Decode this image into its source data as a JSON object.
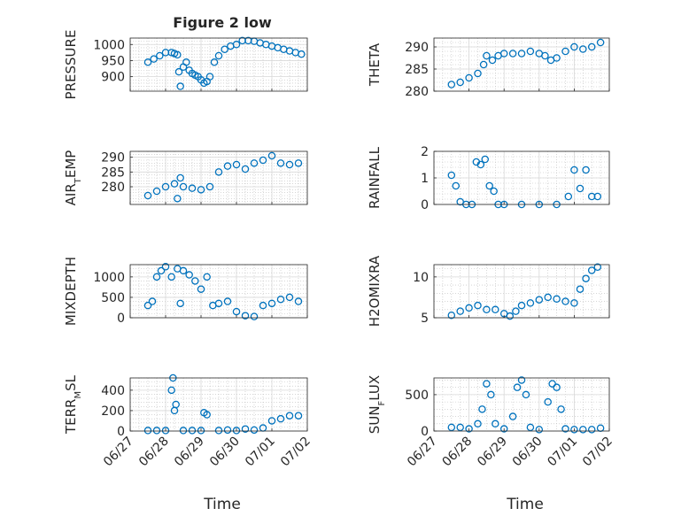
{
  "figure": {
    "title": "Figure 2 low",
    "xlabel": "Time",
    "date_ticks": [
      "06/27",
      "06/28",
      "06/29",
      "06/30",
      "07/01",
      "07/02"
    ]
  },
  "colors": {
    "marker": "#0072BD",
    "axis": "#262626",
    "grid": "#bdbdbd",
    "box": "#ffffff"
  },
  "chart_data": [
    {
      "type": "scatter",
      "name": "pressure",
      "ylabel": "PRESSURE",
      "title": "Figure 2 low",
      "xlim": [
        "06/27",
        "07/02"
      ],
      "ylim": [
        855,
        1020
      ],
      "yticks": [
        900,
        950,
        1000
      ],
      "grid": true,
      "x": [
        "06/27 12:00",
        "06/27 16:00",
        "06/27 20:00",
        "06/28 00:00",
        "06/28 04:00",
        "06/28 06:00",
        "06/28 08:00",
        "06/28 09:00",
        "06/28 10:00",
        "06/28 12:00",
        "06/28 14:00",
        "06/28 16:00",
        "06/28 18:00",
        "06/28 20:00",
        "06/28 22:00",
        "06/29 00:00",
        "06/29 02:00",
        "06/29 04:00",
        "06/29 06:00",
        "06/29 09:00",
        "06/29 12:00",
        "06/29 16:00",
        "06/29 20:00",
        "06/30 00:00",
        "06/30 04:00",
        "06/30 08:00",
        "06/30 12:00",
        "06/30 16:00",
        "06/30 20:00",
        "07/01 00:00",
        "07/01 04:00",
        "07/01 08:00",
        "07/01 12:00",
        "07/01 16:00",
        "07/01 20:00"
      ],
      "y": [
        945,
        955,
        965,
        975,
        975,
        972,
        968,
        915,
        870,
        930,
        945,
        920,
        910,
        905,
        900,
        890,
        880,
        885,
        900,
        945,
        965,
        985,
        995,
        1000,
        1012,
        1012,
        1010,
        1005,
        1000,
        995,
        990,
        985,
        980,
        975,
        970
      ]
    },
    {
      "type": "scatter",
      "name": "theta",
      "ylabel": "THETA",
      "xlim": [
        "06/27",
        "07/02"
      ],
      "ylim": [
        280,
        292
      ],
      "yticks": [
        280,
        285,
        290
      ],
      "grid": true,
      "x": [
        "06/27 12:00",
        "06/27 18:00",
        "06/28 00:00",
        "06/28 06:00",
        "06/28 10:00",
        "06/28 12:00",
        "06/28 16:00",
        "06/28 20:00",
        "06/29 00:00",
        "06/29 06:00",
        "06/29 12:00",
        "06/29 18:00",
        "06/30 00:00",
        "06/30 04:00",
        "06/30 08:00",
        "06/30 12:00",
        "06/30 18:00",
        "07/01 00:00",
        "07/01 06:00",
        "07/01 12:00",
        "07/01 18:00"
      ],
      "y": [
        281.5,
        282,
        283,
        284,
        286,
        288,
        287,
        288,
        288.5,
        288.5,
        288.5,
        289,
        288.5,
        288,
        287,
        287.5,
        289,
        290,
        289.5,
        290,
        291
      ]
    },
    {
      "type": "scatter",
      "name": "air_temp",
      "ylabel": "AIR_TEMP",
      "xlim": [
        "06/27",
        "07/02"
      ],
      "ylim": [
        274,
        292
      ],
      "yticks": [
        280,
        285,
        290
      ],
      "grid": true,
      "x": [
        "06/27 12:00",
        "06/27 18:00",
        "06/28 00:00",
        "06/28 06:00",
        "06/28 08:00",
        "06/28 10:00",
        "06/28 12:00",
        "06/28 18:00",
        "06/29 00:00",
        "06/29 06:00",
        "06/29 12:00",
        "06/29 18:00",
        "06/30 00:00",
        "06/30 06:00",
        "06/30 12:00",
        "06/30 18:00",
        "07/01 00:00",
        "07/01 06:00",
        "07/01 12:00",
        "07/01 18:00"
      ],
      "y": [
        277,
        278.5,
        280,
        281,
        276,
        283,
        280,
        279.5,
        279,
        280,
        285,
        287,
        287.5,
        286,
        288,
        289,
        290.5,
        288,
        287.5,
        288
      ]
    },
    {
      "type": "scatter",
      "name": "rainfall",
      "ylabel": "RAINFALL",
      "xlim": [
        "06/27",
        "07/02"
      ],
      "ylim": [
        0,
        2
      ],
      "yticks": [
        0,
        1,
        2
      ],
      "grid": true,
      "x": [
        "06/27 12:00",
        "06/27 15:00",
        "06/27 18:00",
        "06/27 22:00",
        "06/28 02:00",
        "06/28 05:00",
        "06/28 08:00",
        "06/28 11:00",
        "06/28 14:00",
        "06/28 17:00",
        "06/28 20:00",
        "06/29 00:00",
        "06/29 12:00",
        "06/30 00:00",
        "06/30 12:00",
        "06/30 20:00",
        "07/01 00:00",
        "07/01 04:00",
        "07/01 08:00",
        "07/01 12:00",
        "07/01 16:00"
      ],
      "y": [
        1.1,
        0.7,
        0.1,
        0,
        0,
        1.6,
        1.5,
        1.7,
        0.7,
        0.5,
        0,
        0,
        0,
        0,
        0,
        0.3,
        1.3,
        0.6,
        1.3,
        0.3,
        0.3
      ]
    },
    {
      "type": "scatter",
      "name": "mixdepth",
      "ylabel": "MIXDEPTH",
      "xlim": [
        "06/27",
        "07/02"
      ],
      "ylim": [
        0,
        1300
      ],
      "yticks": [
        0,
        500,
        1000
      ],
      "grid": true,
      "x": [
        "06/27 12:00",
        "06/27 15:00",
        "06/27 18:00",
        "06/27 21:00",
        "06/28 00:00",
        "06/28 04:00",
        "06/28 08:00",
        "06/28 10:00",
        "06/28 12:00",
        "06/28 16:00",
        "06/28 20:00",
        "06/29 00:00",
        "06/29 04:00",
        "06/29 08:00",
        "06/29 12:00",
        "06/29 18:00",
        "06/30 00:00",
        "06/30 06:00",
        "06/30 12:00",
        "06/30 18:00",
        "07/01 00:00",
        "07/01 06:00",
        "07/01 12:00",
        "07/01 18:00"
      ],
      "y": [
        300,
        400,
        1000,
        1150,
        1250,
        1000,
        1200,
        350,
        1150,
        1050,
        900,
        700,
        1000,
        300,
        350,
        400,
        150,
        50,
        30,
        300,
        350,
        450,
        500,
        400
      ]
    },
    {
      "type": "scatter",
      "name": "h2omixra",
      "ylabel": "H2OMIXRA",
      "xlim": [
        "06/27",
        "07/02"
      ],
      "ylim": [
        5,
        11.5
      ],
      "yticks": [
        5,
        10
      ],
      "grid": true,
      "x": [
        "06/27 12:00",
        "06/27 18:00",
        "06/28 00:00",
        "06/28 06:00",
        "06/28 12:00",
        "06/28 18:00",
        "06/29 00:00",
        "06/29 04:00",
        "06/29 08:00",
        "06/29 12:00",
        "06/29 18:00",
        "06/30 00:00",
        "06/30 06:00",
        "06/30 12:00",
        "06/30 18:00",
        "07/01 00:00",
        "07/01 04:00",
        "07/01 08:00",
        "07/01 12:00",
        "07/01 16:00"
      ],
      "y": [
        5.3,
        5.8,
        6.2,
        6.5,
        6,
        6,
        5.5,
        5.2,
        5.8,
        6.5,
        6.8,
        7.2,
        7.5,
        7.3,
        7,
        6.8,
        8.5,
        9.8,
        10.8,
        11.2
      ]
    },
    {
      "type": "scatter",
      "name": "terr_msl",
      "ylabel": "TERR_MSL",
      "xlim": [
        "06/27",
        "07/02"
      ],
      "ylim": [
        0,
        520
      ],
      "yticks": [
        0,
        200,
        400
      ],
      "grid": true,
      "x": [
        "06/27 12:00",
        "06/27 18:00",
        "06/28 00:00",
        "06/28 04:00",
        "06/28 05:00",
        "06/28 06:00",
        "06/28 07:00",
        "06/28 12:00",
        "06/28 18:00",
        "06/29 00:00",
        "06/29 02:00",
        "06/29 04:00",
        "06/29 12:00",
        "06/29 18:00",
        "06/30 00:00",
        "06/30 06:00",
        "06/30 12:00",
        "06/30 18:00",
        "07/01 00:00",
        "07/01 06:00",
        "07/01 12:00",
        "07/01 18:00"
      ],
      "y": [
        5,
        5,
        5,
        400,
        520,
        200,
        260,
        5,
        5,
        5,
        180,
        160,
        5,
        10,
        5,
        20,
        10,
        30,
        100,
        120,
        150,
        150
      ]
    },
    {
      "type": "scatter",
      "name": "sun_flux",
      "ylabel": "SUN_FLUX",
      "xlim": [
        "06/27",
        "07/02"
      ],
      "ylim": [
        0,
        730
      ],
      "yticks": [
        0,
        500
      ],
      "grid": true,
      "x": [
        "06/27 12:00",
        "06/27 18:00",
        "06/28 00:00",
        "06/28 06:00",
        "06/28 09:00",
        "06/28 12:00",
        "06/28 15:00",
        "06/28 18:00",
        "06/29 00:00",
        "06/29 06:00",
        "06/29 09:00",
        "06/29 12:00",
        "06/29 15:00",
        "06/29 18:00",
        "06/30 00:00",
        "06/30 06:00",
        "06/30 09:00",
        "06/30 12:00",
        "06/30 15:00",
        "06/30 18:00",
        "07/01 00:00",
        "07/01 06:00",
        "07/01 12:00",
        "07/01 18:00"
      ],
      "y": [
        50,
        50,
        30,
        100,
        300,
        650,
        500,
        100,
        30,
        200,
        600,
        700,
        500,
        50,
        20,
        400,
        650,
        600,
        300,
        30,
        20,
        20,
        20,
        40
      ]
    }
  ]
}
